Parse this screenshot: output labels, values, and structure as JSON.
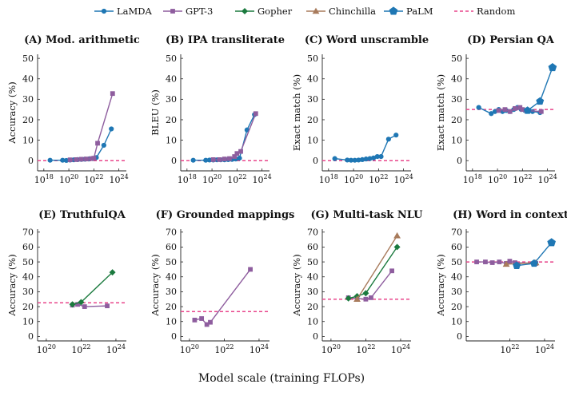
{
  "chart_data": {
    "type": "line",
    "xlabel": "Model scale (training FLOPs)",
    "legend": {
      "placement": "top-center",
      "entries": [
        {
          "name": "LaMDA",
          "color": "#1f77b4",
          "marker": "circle"
        },
        {
          "name": "GPT-3",
          "color": "#8e5d9e",
          "marker": "square"
        },
        {
          "name": "Gopher",
          "color": "#1b7a3e",
          "marker": "diamond"
        },
        {
          "name": "Chinchilla",
          "color": "#a87b5c",
          "marker": "triangle"
        },
        {
          "name": "PaLM",
          "color": "#1f77b4",
          "marker": "pentagon"
        },
        {
          "name": "Random",
          "color": "#e8458b",
          "marker": "dashed-line"
        }
      ]
    },
    "panels": [
      {
        "title": "(A) Mod. arithmetic",
        "ylabel": "Accuracy (%)",
        "xlim_exp": [
          17.5,
          24.6
        ],
        "ylim": [
          -5,
          52
        ],
        "yticks": [
          0,
          10,
          20,
          30,
          40,
          50
        ],
        "xticks_exp": [
          18,
          20,
          22,
          24
        ],
        "random": 0,
        "series": [
          {
            "name": "LaMDA",
            "x_exp": [
              18.5,
              19.5,
              19.8,
              20.1,
              20.4,
              20.7,
              21.0,
              21.3,
              21.6,
              21.9,
              22.2,
              22.8,
              23.4
            ],
            "y": [
              0.2,
              0.2,
              0.1,
              0.3,
              0.4,
              0.5,
              0.6,
              0.7,
              0.8,
              1.0,
              1.5,
              7.5,
              15.5
            ]
          },
          {
            "name": "GPT-3",
            "x_exp": [
              20.1,
              20.6,
              21.0,
              21.4,
              21.8,
              22.0,
              22.3,
              23.5
            ],
            "y": [
              0.4,
              0.5,
              0.7,
              0.8,
              1.0,
              1.2,
              8.5,
              32.8
            ]
          }
        ]
      },
      {
        "title": "(B) IPA transliterate",
        "ylabel": "BLEU (%)",
        "xlim_exp": [
          17.5,
          24.6
        ],
        "ylim": [
          -5,
          52
        ],
        "yticks": [
          0,
          10,
          20,
          30,
          40,
          50
        ],
        "xticks_exp": [
          18,
          20,
          22,
          24
        ],
        "random": 0,
        "series": [
          {
            "name": "LaMDA",
            "x_exp": [
              18.5,
              19.5,
              19.8,
              20.1,
              20.4,
              20.7,
              21.0,
              21.3,
              21.6,
              21.9,
              22.2,
              22.8,
              23.4
            ],
            "y": [
              0.2,
              0.2,
              0.3,
              0.3,
              0.4,
              0.4,
              0.4,
              0.5,
              0.6,
              0.8,
              1.2,
              15.0,
              22.5
            ]
          },
          {
            "name": "GPT-3",
            "x_exp": [
              20.1,
              20.6,
              21.0,
              21.4,
              21.8,
              22.0,
              22.3,
              23.5
            ],
            "y": [
              0.5,
              0.5,
              0.8,
              1.0,
              2.0,
              3.5,
              4.5,
              23.0
            ]
          }
        ]
      },
      {
        "title": "(C) Word unscramble",
        "ylabel": "Exact match (%)",
        "xlim_exp": [
          17.5,
          24.6
        ],
        "ylim": [
          -5,
          52
        ],
        "yticks": [
          0,
          10,
          20,
          30,
          40,
          50
        ],
        "xticks_exp": [
          18,
          20,
          22,
          24
        ],
        "random": 0,
        "series": [
          {
            "name": "LaMDA",
            "x_exp": [
              18.5,
              19.5,
              19.8,
              20.1,
              20.4,
              20.7,
              21.0,
              21.3,
              21.6,
              21.9,
              22.2,
              22.8,
              23.4
            ],
            "y": [
              1.0,
              0.3,
              0.2,
              0.2,
              0.3,
              0.5,
              0.8,
              1.0,
              1.3,
              2.0,
              2.0,
              10.5,
              12.5
            ]
          }
        ]
      },
      {
        "title": "(D) Persian QA",
        "ylabel": "Exact match (%)",
        "xlim_exp": [
          17.5,
          24.6
        ],
        "ylim": [
          -5,
          52
        ],
        "yticks": [
          0,
          10,
          20,
          30,
          40,
          50
        ],
        "xticks_exp": [
          18,
          20,
          22,
          24
        ],
        "random": 25,
        "series": [
          {
            "name": "LaMDA",
            "x_exp": [
              18.5,
              19.5,
              19.8,
              20.1,
              20.4,
              20.7,
              21.0,
              21.3,
              21.6,
              21.9,
              22.2,
              22.8,
              23.4
            ],
            "y": [
              26.0,
              23.0,
              24.0,
              25.0,
              24.0,
              24.5,
              24.0,
              25.0,
              26.0,
              25.0,
              24.5,
              24.0,
              23.5
            ]
          },
          {
            "name": "GPT-3",
            "x_exp": [
              20.1,
              20.6,
              21.0,
              21.4,
              21.8,
              22.0,
              22.3,
              23.5
            ],
            "y": [
              24.5,
              25.0,
              24.0,
              25.5,
              26.0,
              25.0,
              24.5,
              24.0
            ]
          },
          {
            "name": "PaLM",
            "x_exp": [
              22.4,
              23.4,
              24.4
            ],
            "y": [
              24.5,
              29.0,
              45.5
            ]
          }
        ]
      },
      {
        "title": "(E) TruthfulQA",
        "ylabel": "Accuracy (%)",
        "xlim_exp": [
          19.5,
          24.6
        ],
        "ylim": [
          -3,
          72
        ],
        "yticks": [
          0,
          10,
          20,
          30,
          40,
          50,
          60,
          70
        ],
        "xticks_exp": [
          20,
          22,
          24
        ],
        "random": 22.6,
        "series": [
          {
            "name": "GPT-3",
            "x_exp": [
              21.5,
              21.8,
              22.2,
              23.5
            ],
            "y": [
              21.0,
              21.5,
              20.0,
              20.5
            ]
          },
          {
            "name": "Gopher",
            "x_exp": [
              21.5,
              22.0,
              23.8
            ],
            "y": [
              21.5,
              23.0,
              43.0
            ]
          }
        ]
      },
      {
        "title": "(F) Grounded mappings",
        "ylabel": "Accuracy (%)",
        "xlim_exp": [
          19.5,
          24.6
        ],
        "ylim": [
          -3,
          72
        ],
        "yticks": [
          0,
          10,
          20,
          30,
          40,
          50,
          60,
          70
        ],
        "xticks_exp": [
          20,
          22,
          24
        ],
        "random": 16.7,
        "series": [
          {
            "name": "GPT-3",
            "x_exp": [
              20.3,
              20.7,
              21.0,
              21.2,
              23.5
            ],
            "y": [
              11.0,
              12.0,
              8.0,
              9.5,
              45.0
            ]
          }
        ]
      },
      {
        "title": "(G) Multi-task NLU",
        "ylabel": "Accuracy (%)",
        "xlim_exp": [
          19.5,
          24.6
        ],
        "ylim": [
          -3,
          72
        ],
        "yticks": [
          0,
          10,
          20,
          30,
          40,
          50,
          60,
          70
        ],
        "xticks_exp": [
          20,
          22,
          24
        ],
        "random": 25,
        "series": [
          {
            "name": "GPT-3",
            "x_exp": [
              21.0,
              21.5,
              22.0,
              22.3,
              23.5
            ],
            "y": [
              26.0,
              25.5,
              25.0,
              26.0,
              44.0
            ]
          },
          {
            "name": "Gopher",
            "x_exp": [
              21.0,
              21.5,
              22.0,
              23.8
            ],
            "y": [
              25.5,
              27.0,
              29.0,
              60.0
            ]
          },
          {
            "name": "Chinchilla",
            "x_exp": [
              21.5,
              23.8
            ],
            "y": [
              25.0,
              67.6
            ]
          }
        ]
      },
      {
        "title": "(H) Word in context",
        "ylabel": "Accuracy (%)",
        "xlim_exp": [
          19.5,
          24.6
        ],
        "ylim": [
          -3,
          72
        ],
        "yticks": [
          0,
          10,
          20,
          30,
          40,
          50,
          60,
          70
        ],
        "xticks_exp": [
          22,
          24
        ],
        "random": 50,
        "series": [
          {
            "name": "GPT-3",
            "x_exp": [
              20.1,
              20.6,
              21.0,
              21.4,
              21.8,
              22.0,
              22.3,
              23.5
            ],
            "y": [
              50.0,
              50.0,
              49.5,
              50.0,
              49.0,
              50.5,
              49.5,
              49.0
            ]
          },
          {
            "name": "Chinchilla",
            "x_exp": [
              21.8,
              23.5
            ],
            "y": [
              48.5,
              49.5
            ]
          },
          {
            "name": "PaLM",
            "x_exp": [
              22.4,
              23.4,
              24.4
            ],
            "y": [
              47.5,
              49.0,
              63.0
            ]
          }
        ]
      }
    ]
  }
}
